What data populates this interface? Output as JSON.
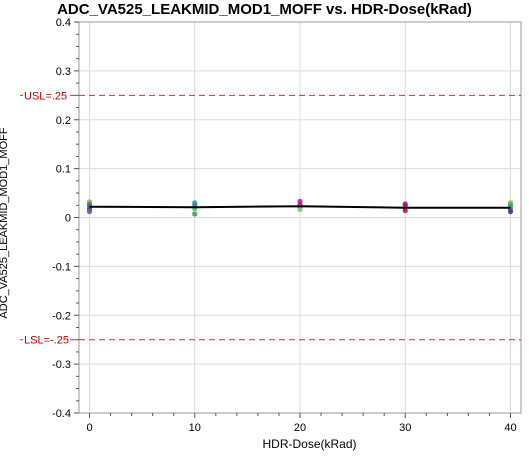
{
  "chart_data": {
    "type": "scatter",
    "title": "ADC_VA525_LEAKMID_MOD1_MOFF vs. HDR-Dose(kRad)",
    "xlabel": "HDR-Dose(kRad)",
    "ylabel": "ADC_VA525_LEAKMID_MOD1_MOFF",
    "xlim": [
      -1,
      41
    ],
    "ylim": [
      -0.4,
      0.4
    ],
    "x_ticks": [
      0,
      10,
      20,
      30,
      40
    ],
    "x_tick_labels": [
      "0",
      "10",
      "20",
      "30",
      "40"
    ],
    "y_ticks": [
      0.4,
      0.3,
      0.2,
      0.1,
      0,
      -0.1,
      -0.2,
      -0.3,
      -0.4
    ],
    "y_tick_labels": [
      "0.4",
      "0.3",
      "0.2",
      "0.1",
      "0",
      "-0.1",
      "-0.2",
      "-0.3",
      "-0.4"
    ],
    "y_minor_step": 0.025,
    "grid": true,
    "reference_lines": [
      {
        "label": "USL=.25",
        "value": 0.25,
        "color": "#cc3333"
      },
      {
        "label": "LSL=-.25",
        "value": -0.25,
        "color": "#cc3333"
      }
    ],
    "mean_line": {
      "x": [
        0,
        10,
        20,
        30,
        40
      ],
      "y": [
        0.022,
        0.021,
        0.023,
        0.02,
        0.02
      ],
      "color": "#000000"
    },
    "points": [
      {
        "x": 0,
        "y": 0.032,
        "color": "#a8b43c"
      },
      {
        "x": 0,
        "y": 0.028,
        "color": "#4caf50"
      },
      {
        "x": 0,
        "y": 0.025,
        "color": "#2e7d8c"
      },
      {
        "x": 0,
        "y": 0.02,
        "color": "#8e44ad"
      },
      {
        "x": 0,
        "y": 0.016,
        "color": "#3f51b5"
      },
      {
        "x": 0,
        "y": 0.012,
        "color": "#5d6d7e"
      },
      {
        "x": 10,
        "y": 0.03,
        "color": "#26a69a"
      },
      {
        "x": 10,
        "y": 0.026,
        "color": "#5c6bc0"
      },
      {
        "x": 10,
        "y": 0.022,
        "color": "#4a90a4"
      },
      {
        "x": 10,
        "y": 0.018,
        "color": "#66bb6a"
      },
      {
        "x": 10,
        "y": 0.007,
        "color": "#43a047"
      },
      {
        "x": 20,
        "y": 0.033,
        "color": "#9c27b0"
      },
      {
        "x": 20,
        "y": 0.026,
        "color": "#c2185b"
      },
      {
        "x": 20,
        "y": 0.022,
        "color": "#7e57c2"
      },
      {
        "x": 20,
        "y": 0.016,
        "color": "#81c784"
      },
      {
        "x": 30,
        "y": 0.028,
        "color": "#8e24aa"
      },
      {
        "x": 30,
        "y": 0.024,
        "color": "#ad1457"
      },
      {
        "x": 30,
        "y": 0.019,
        "color": "#b03060"
      },
      {
        "x": 30,
        "y": 0.014,
        "color": "#c2185b"
      },
      {
        "x": 40,
        "y": 0.03,
        "color": "#a8b43c"
      },
      {
        "x": 40,
        "y": 0.026,
        "color": "#4caf50"
      },
      {
        "x": 40,
        "y": 0.022,
        "color": "#26a69a"
      },
      {
        "x": 40,
        "y": 0.017,
        "color": "#5c6bc0"
      },
      {
        "x": 40,
        "y": 0.012,
        "color": "#2c3e80"
      }
    ]
  }
}
